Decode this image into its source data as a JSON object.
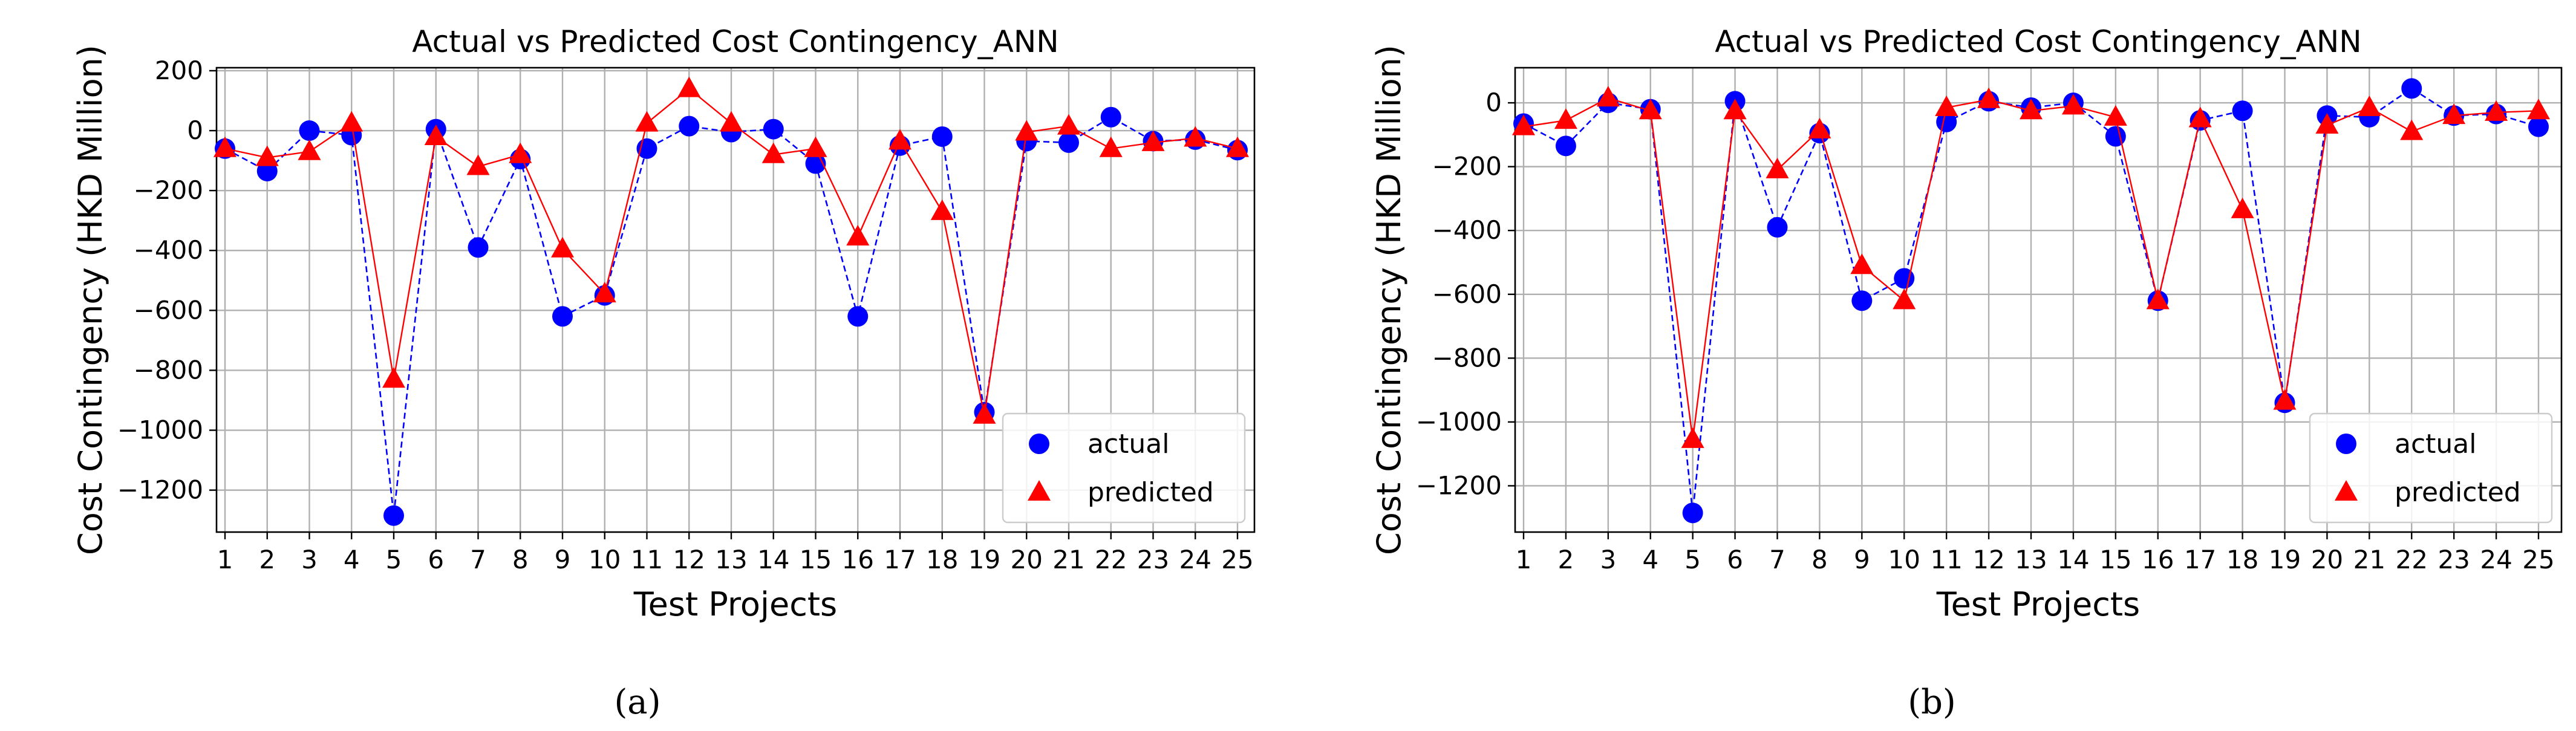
{
  "chart_data": [
    {
      "type": "line",
      "panel_label": "(a)",
      "title": "Actual vs Predicted Cost Contingency_ANN",
      "xlabel": "Test Projects",
      "ylabel": "Cost Contingency (HKD Million)",
      "x": [
        1,
        2,
        3,
        4,
        5,
        6,
        7,
        8,
        9,
        10,
        11,
        12,
        13,
        14,
        15,
        16,
        17,
        18,
        19,
        20,
        21,
        22,
        23,
        24,
        25
      ],
      "xtick_labels": [
        "1",
        "2",
        "3",
        "4",
        "5",
        "6",
        "7",
        "8",
        "9",
        "10",
        "11",
        "12",
        "13",
        "14",
        "15",
        "16",
        "17",
        "18",
        "19",
        "20",
        "21",
        "22",
        "23",
        "24",
        "25"
      ],
      "yticks": [
        -1200,
        -1000,
        -800,
        -600,
        -400,
        -200,
        0,
        200
      ],
      "ytick_labels": [
        "−1200",
        "−1000",
        "−800",
        "−600",
        "−400",
        "−200",
        "0",
        "200"
      ],
      "ylim": [
        -1340,
        210
      ],
      "grid": true,
      "legend_position": "lower-right",
      "series": [
        {
          "name": "actual",
          "marker": "circle",
          "line": "dashed",
          "color": "#0000ff",
          "values": [
            -60,
            -135,
            0,
            -15,
            -1285,
            5,
            -390,
            -95,
            -620,
            -550,
            -60,
            15,
            -5,
            5,
            -110,
            -620,
            -50,
            -20,
            -940,
            -35,
            -40,
            45,
            -35,
            -30,
            -65
          ]
        },
        {
          "name": "predicted",
          "marker": "triangle",
          "line": "solid",
          "color": "#ff0000",
          "values": [
            -60,
            -90,
            -70,
            25,
            -830,
            -20,
            -120,
            -80,
            -395,
            -545,
            25,
            140,
            25,
            -80,
            -60,
            -355,
            -35,
            -270,
            -950,
            -5,
            15,
            -60,
            -40,
            -25,
            -60
          ]
        }
      ]
    },
    {
      "type": "line",
      "panel_label": "(b)",
      "title": "Actual vs Predicted Cost Contingency_ANN",
      "xlabel": "Test Projects",
      "ylabel": "Cost Contingency (HKD Million)",
      "x": [
        1,
        2,
        3,
        4,
        5,
        6,
        7,
        8,
        9,
        10,
        11,
        12,
        13,
        14,
        15,
        16,
        17,
        18,
        19,
        20,
        21,
        22,
        23,
        24,
        25
      ],
      "xtick_labels": [
        "1",
        "2",
        "3",
        "4",
        "5",
        "6",
        "7",
        "8",
        "9",
        "10",
        "11",
        "12",
        "13",
        "14",
        "15",
        "16",
        "17",
        "18",
        "19",
        "20",
        "21",
        "22",
        "23",
        "24",
        "25"
      ],
      "yticks": [
        -1200,
        -1000,
        -800,
        -600,
        -400,
        -200,
        0
      ],
      "ytick_labels": [
        "−1200",
        "−1000",
        "−800",
        "−600",
        "−400",
        "−200",
        "0"
      ],
      "ylim": [
        -1345,
        110
      ],
      "grid": true,
      "legend_position": "lower-right",
      "series": [
        {
          "name": "actual",
          "marker": "circle",
          "line": "dashed",
          "color": "#0000ff",
          "values": [
            -65,
            -135,
            0,
            -20,
            -1285,
            5,
            -390,
            -95,
            -620,
            -550,
            -60,
            5,
            -15,
            0,
            -105,
            -620,
            -55,
            -25,
            -940,
            -40,
            -45,
            45,
            -40,
            -35,
            -75
          ]
        },
        {
          "name": "predicted",
          "marker": "triangle",
          "line": "solid",
          "color": "#ff0000",
          "values": [
            -75,
            -55,
            15,
            -25,
            -1055,
            -25,
            -210,
            -85,
            -510,
            -620,
            -15,
            10,
            -25,
            -10,
            -45,
            -620,
            -50,
            -335,
            -935,
            -70,
            -15,
            -90,
            -40,
            -30,
            -25
          ]
        }
      ]
    }
  ]
}
